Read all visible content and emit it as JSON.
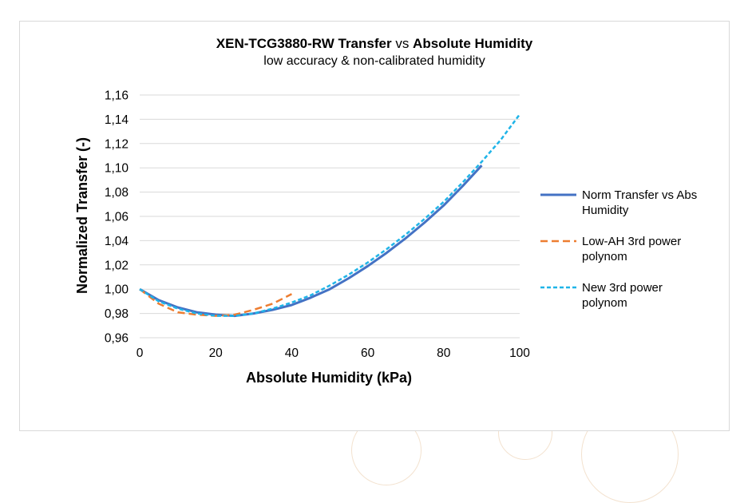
{
  "chart_data": {
    "type": "line",
    "title": {
      "parts": [
        {
          "text": "XEN-TCG3880-RW Transfer",
          "bold": true
        },
        {
          "text": " vs ",
          "bold": false
        },
        {
          "text": "Absolute Humidity",
          "bold": true
        }
      ]
    },
    "subtitle": "low accuracy & non-calibrated humidity",
    "xlabel": "Absolute Humidity (kPa)",
    "ylabel": "Normalized Transfer (-)",
    "xlim": [
      0,
      100
    ],
    "ylim": [
      0.96,
      1.16
    ],
    "x_ticks": [
      "0",
      "20",
      "40",
      "60",
      "80",
      "100"
    ],
    "y_ticks": [
      "0,96",
      "0,98",
      "1,00",
      "1,02",
      "1,04",
      "1,06",
      "1,08",
      "1,10",
      "1,12",
      "1,14",
      "1,16"
    ],
    "grid": true,
    "legend_position": "right",
    "series": [
      {
        "name": "Norm Transfer vs Abs Humidity",
        "color": "#4472c4",
        "style": "solid",
        "x": [
          0,
          5,
          10,
          15,
          20,
          25,
          30,
          35,
          40,
          45,
          50,
          55,
          60,
          65,
          70,
          75,
          80,
          85,
          90
        ],
        "y": [
          1.0,
          0.991,
          0.985,
          0.981,
          0.979,
          0.978,
          0.98,
          0.983,
          0.987,
          0.993,
          1.0,
          1.009,
          1.019,
          1.03,
          1.042,
          1.055,
          1.069,
          1.085,
          1.102
        ]
      },
      {
        "name": "Low-AH 3rd power polynom",
        "color": "#ed7d31",
        "style": "dashed",
        "x": [
          0,
          5,
          10,
          15,
          20,
          25,
          30,
          35,
          40
        ],
        "y": [
          1.0,
          0.988,
          0.981,
          0.979,
          0.978,
          0.979,
          0.983,
          0.988,
          0.996
        ]
      },
      {
        "name": "New 3rd power polynom",
        "color": "#1fb4e8",
        "style": "dotted",
        "x": [
          0,
          5,
          10,
          15,
          20,
          25,
          30,
          35,
          40,
          45,
          50,
          55,
          60,
          65,
          70,
          75,
          80,
          85,
          90,
          95,
          100
        ],
        "y": [
          1.0,
          0.99,
          0.984,
          0.98,
          0.978,
          0.978,
          0.98,
          0.984,
          0.989,
          0.995,
          1.003,
          1.012,
          1.022,
          1.033,
          1.045,
          1.058,
          1.072,
          1.088,
          1.105,
          1.123,
          1.144
        ]
      }
    ]
  }
}
